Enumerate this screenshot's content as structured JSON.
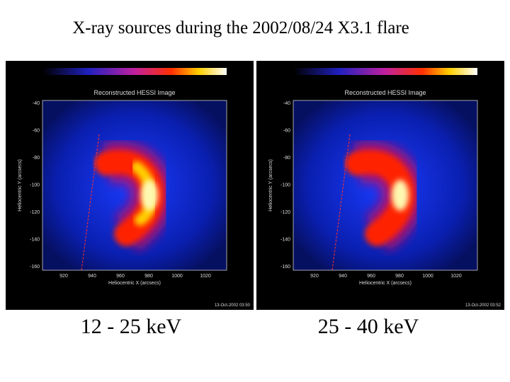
{
  "title": "X-ray sources during the 2002/08/24 X3.1 flare",
  "panels": [
    {
      "heading": "Reconstructed HESSI Image",
      "x_label": "Heliocentric X (arcsecs)",
      "y_label": "Heliocentric Y (arcsecs)",
      "xticks": [
        "920",
        "940",
        "960",
        "980",
        "1000",
        "1020"
      ],
      "yticks": [
        "-40",
        "-60",
        "-80",
        "-100",
        "-120",
        "-140",
        "-160"
      ],
      "stamp": "13-Oct-2002 03:50",
      "caption": "12  - 25 keV"
    },
    {
      "heading": "Reconstructed HESSI Image",
      "x_label": "Heliocentric X (arcsecs)",
      "y_label": "Heliocentric Y (arcsecs)",
      "xticks": [
        "920",
        "940",
        "960",
        "980",
        "1000",
        "1020"
      ],
      "yticks": [
        "-40",
        "-60",
        "-80",
        "-100",
        "-120",
        "-140",
        "-160"
      ],
      "stamp": "13-Oct-2002 03:52",
      "caption": "25 - 40 keV"
    }
  ]
}
